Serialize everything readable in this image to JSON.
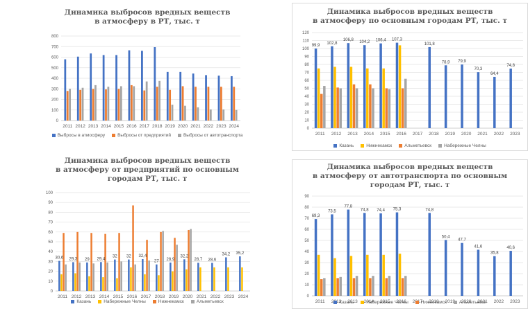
{
  "chart_data": [
    {
      "type": "bar",
      "title_lines": [
        "Динамика выбросов вредных веществ",
        "в атмосферу в РТ, тыс. т"
      ],
      "categories": [
        "2011",
        "2012",
        "2013",
        "2014",
        "2015",
        "2016",
        "2017",
        "2018",
        "2019",
        "2020",
        "2021",
        "2022",
        "2023",
        "2024"
      ],
      "ylim": [
        0,
        800
      ],
      "yticks": [
        0,
        100,
        200,
        300,
        400,
        500,
        600,
        700,
        800
      ],
      "grid": true,
      "legend_position": "bottom",
      "series": [
        {
          "name": "Выбросы в атмосферу",
          "color": "#4472c4",
          "values": [
            580,
            605,
            635,
            620,
            620,
            665,
            660,
            695,
            460,
            460,
            445,
            430,
            425,
            420
          ]
        },
        {
          "name": "Выбросы от предприятий",
          "color": "#ed7d31",
          "values": [
            280,
            290,
            300,
            295,
            300,
            335,
            285,
            320,
            290,
            325,
            320,
            320,
            320,
            320
          ]
        },
        {
          "name": "Выбросы от автотранспорта",
          "color": "#a5a5a5",
          "values": [
            300,
            310,
            335,
            320,
            325,
            325,
            370,
            375,
            150,
            140,
            125,
            105,
            105,
            100
          ]
        }
      ]
    },
    {
      "type": "bar",
      "title_lines": [
        "Динамика выбросов вредных веществ",
        "в атмосферу по основным городам РТ, тыс. т"
      ],
      "categories": [
        "2011",
        "2012",
        "2013",
        "2014",
        "2015",
        "2016",
        "2017",
        "2018",
        "2019",
        "2020",
        "2021",
        "2022",
        "2023"
      ],
      "ylim": [
        0,
        120
      ],
      "yticks": [
        0,
        10,
        20,
        30,
        40,
        50,
        60,
        70,
        80,
        90,
        100,
        110,
        120
      ],
      "grid": true,
      "legend_position": "bottom",
      "label_series": 0,
      "value_labels": [
        "99,9",
        "102,8",
        "106,8",
        "104,2",
        "106,4",
        "107,3",
        "",
        "101,8",
        "78,9",
        "79,9",
        "70,3",
        "64,4",
        "74,8"
      ],
      "series": [
        {
          "name": "Казань",
          "color": "#4472c4",
          "values": [
            99.9,
            102.8,
            106.8,
            104.2,
            106.4,
            107.3,
            null,
            101.8,
            78.9,
            79.9,
            70.3,
            64.4,
            74.8
          ]
        },
        {
          "name": "Нижнекамск",
          "color": "#ffc000",
          "values": [
            75,
            77,
            77,
            75,
            75,
            104,
            null,
            null,
            null,
            null,
            null,
            null,
            null
          ]
        },
        {
          "name": "Альметьевск",
          "color": "#ed7d31",
          "values": [
            43,
            51,
            55,
            55,
            50,
            50,
            null,
            null,
            null,
            null,
            null,
            null,
            null
          ]
        },
        {
          "name": "Набережные Челны",
          "color": "#a5a5a5",
          "values": [
            53,
            50,
            50,
            50,
            49,
            62,
            null,
            null,
            null,
            null,
            null,
            null,
            null
          ]
        }
      ]
    },
    {
      "type": "bar",
      "title_lines": [
        "Динамика выбросов вредных веществ",
        "в атмосферу от предприятий по основным",
        "городам РТ, тыс. т"
      ],
      "categories": [
        "2011",
        "2012",
        "2013",
        "2014",
        "2015",
        "2016",
        "2017",
        "2018",
        "2019",
        "2020",
        "2021",
        "2022",
        "2023",
        "2024"
      ],
      "ylim": [
        0,
        100
      ],
      "yticks": [
        0,
        10,
        20,
        30,
        40,
        50,
        60,
        70,
        80,
        90,
        100
      ],
      "grid": true,
      "legend_position": "bottom",
      "label_series": 0,
      "value_labels": [
        "30,6",
        "29,3",
        "29",
        "29,4",
        "32",
        "32",
        "32,4",
        "27",
        "28,9",
        "32,2",
        "28,7",
        "28,6",
        "34,2",
        "35,2"
      ],
      "series": [
        {
          "name": "Казань",
          "color": "#4472c4",
          "values": [
            30.6,
            29.3,
            29,
            29.4,
            32,
            32,
            32.4,
            27,
            28.9,
            32.2,
            28.7,
            28.6,
            34.2,
            35.2
          ]
        },
        {
          "name": "Набережные Челны",
          "color": "#ffc000",
          "values": [
            17,
            18,
            15,
            14,
            13,
            24,
            17,
            16,
            20,
            22,
            24,
            24,
            24,
            24
          ]
        },
        {
          "name": "Нижнекамск",
          "color": "#ed7d31",
          "values": [
            59,
            60,
            59,
            58,
            59,
            87,
            52,
            60,
            54,
            62,
            null,
            null,
            null,
            null
          ]
        },
        {
          "name": "Альметьевск",
          "color": "#a5a5a5",
          "values": [
            27,
            29,
            28,
            29,
            30,
            27,
            31,
            61,
            47,
            63,
            null,
            null,
            null,
            null
          ]
        }
      ]
    },
    {
      "type": "bar",
      "title_lines": [
        "Динамика выбросов вредных веществ",
        "в атмосферу от автотранспорта по основным",
        "городам РТ, тыс. т"
      ],
      "categories": [
        "2011",
        "2012",
        "2013",
        "2014",
        "2015",
        "2016",
        "2017",
        "2018",
        "2019",
        "2020",
        "2021",
        "2022",
        "2023"
      ],
      "ylim": [
        0,
        90
      ],
      "yticks": [
        0,
        10,
        20,
        30,
        40,
        50,
        60,
        70,
        80,
        90
      ],
      "grid": true,
      "legend_position": "bottom",
      "label_series": 0,
      "value_labels": [
        "69,3",
        "73,5",
        "77,8",
        "74,8",
        "74,4",
        "75,3",
        "",
        "74,8",
        "50,4",
        "47,7",
        "41,6",
        "35,8",
        "40,6"
      ],
      "series": [
        {
          "name": "Казань",
          "color": "#4472c4",
          "values": [
            69.3,
            73.5,
            77.8,
            74.8,
            74.4,
            75.3,
            null,
            74.8,
            50.4,
            47.7,
            41.6,
            35.8,
            40.6
          ]
        },
        {
          "name": "Набережные Челны",
          "color": "#ffc000",
          "values": [
            37,
            34,
            36,
            37,
            37,
            38,
            null,
            null,
            null,
            null,
            null,
            null,
            null
          ]
        },
        {
          "name": "Нижнекамск",
          "color": "#ed7d31",
          "values": [
            15,
            16,
            16,
            16,
            16,
            16,
            null,
            null,
            null,
            null,
            null,
            null,
            null
          ]
        },
        {
          "name": "Альметьевск",
          "color": "#a5a5a5",
          "values": [
            16,
            17,
            18,
            18,
            18,
            18,
            null,
            null,
            null,
            null,
            null,
            null,
            null
          ]
        }
      ]
    }
  ]
}
